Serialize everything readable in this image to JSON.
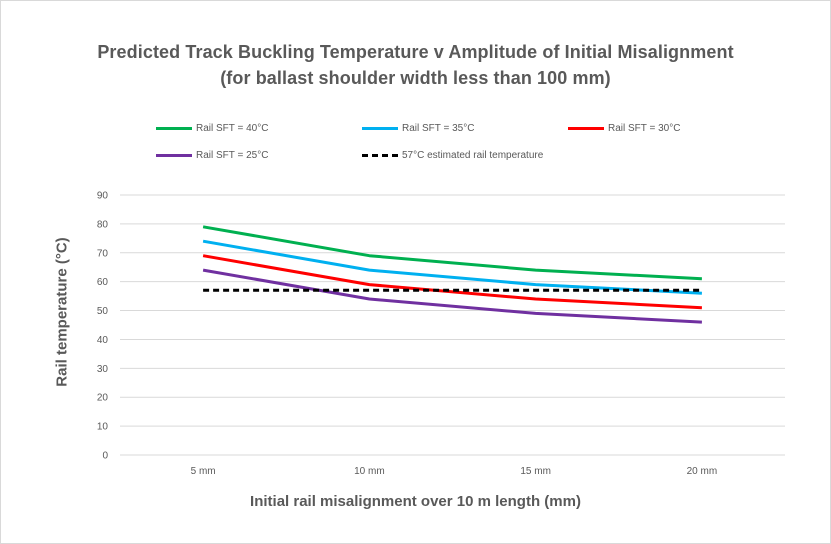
{
  "chart_data": {
    "type": "line",
    "title": "Predicted Track Buckling Temperature v Amplitude of Initial Misalignment",
    "subtitle": "(for ballast shoulder width less than 100 mm)",
    "xlabel": "Initial rail misalignment over 10 m length (mm)",
    "ylabel": "Rail temperature (°C)",
    "categories": [
      "5 mm",
      "10 mm",
      "15 mm",
      "20 mm"
    ],
    "ylim": [
      0,
      90
    ],
    "yticks": [
      "0",
      "10",
      "20",
      "30",
      "40",
      "50",
      "60",
      "70",
      "80",
      "90"
    ],
    "grid": true,
    "legend_position": "top",
    "series": [
      {
        "name": "Rail SFT = 40°C",
        "values": [
          79,
          69,
          64,
          61
        ],
        "color": "#00b050",
        "dash": "solid"
      },
      {
        "name": "Rail SFT = 35°C",
        "values": [
          74,
          64,
          59,
          56
        ],
        "color": "#00b0f0",
        "dash": "solid"
      },
      {
        "name": "Rail SFT = 30°C",
        "values": [
          69,
          59,
          54,
          51
        ],
        "color": "#ff0000",
        "dash": "solid"
      },
      {
        "name": "Rail SFT = 25°C",
        "values": [
          64,
          54,
          49,
          46
        ],
        "color": "#7030a0",
        "dash": "solid"
      },
      {
        "name": "57°C estimated rail temperature",
        "values": [
          57,
          57,
          57,
          57
        ],
        "color": "#000000",
        "dash": "dashed"
      }
    ]
  }
}
